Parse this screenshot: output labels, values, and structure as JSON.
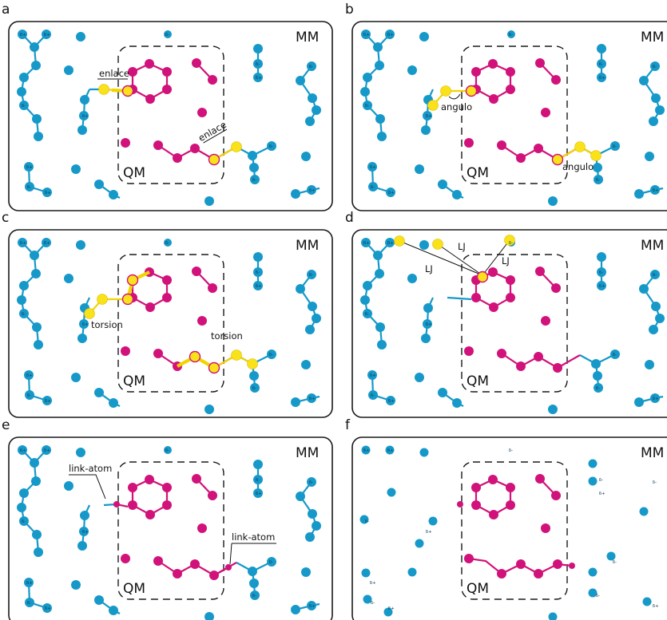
{
  "panels": [
    {
      "letter": "a",
      "mm": "MM",
      "qm": "QM",
      "labels": [
        "enlace",
        "enlace"
      ]
    },
    {
      "letter": "b",
      "mm": "MM",
      "qm": "QM",
      "labels": [
        "angulo",
        "angulo"
      ]
    },
    {
      "letter": "c",
      "mm": "MM",
      "qm": "QM",
      "labels": [
        "torsion",
        "torsion"
      ]
    },
    {
      "letter": "d",
      "mm": "MM",
      "qm": "QM",
      "labels": [
        "LJ",
        "LJ",
        "LJ"
      ]
    },
    {
      "letter": "e",
      "mm": "MM",
      "qm": "QM",
      "labels": [
        "link-atom",
        "link-atom"
      ]
    },
    {
      "letter": "f",
      "mm": "MM",
      "qm": "QM",
      "labels": []
    }
  ],
  "charges": {
    "plus": "δ+",
    "minus": "δ-"
  },
  "colors": {
    "mm_atom": "#1699c9",
    "qm_atom": "#d1127a",
    "boundary_atom": "#f9e21a"
  }
}
